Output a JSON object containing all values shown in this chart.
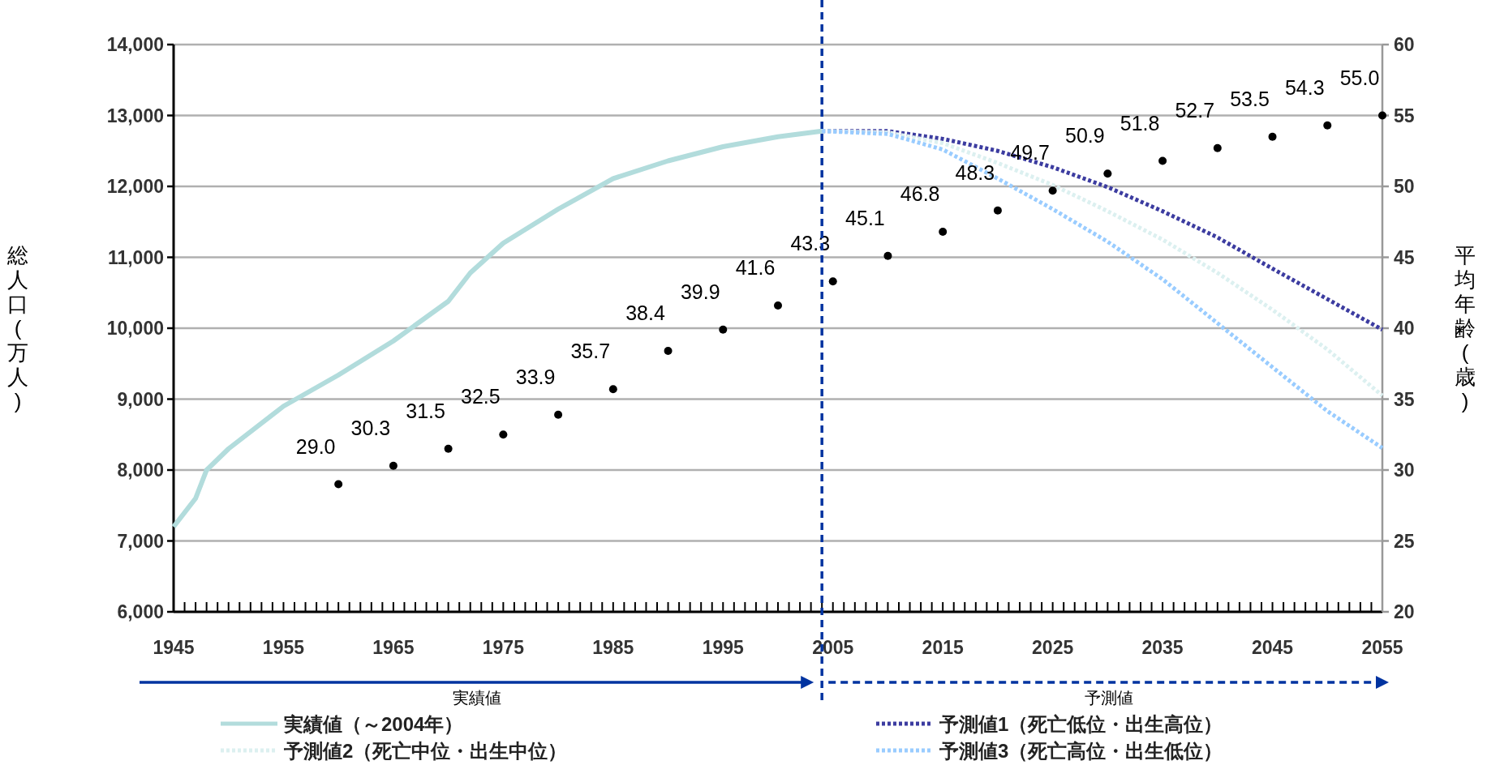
{
  "chart_data": {
    "type": "line",
    "xlabel": null,
    "ylabel": "総人口(万人)",
    "y2label": "平均年齢(歳)",
    "xlim": [
      1945,
      2055
    ],
    "xticks": [
      1945,
      {
        "value": 1946,
        "label": null
      },
      {
        "value": 1947,
        "label": null
      },
      {
        "value": 1948,
        "label": null
      },
      {
        "value": 1949,
        "label": null
      },
      {
        "value": 1950,
        "label": null
      },
      {
        "value": 1951,
        "label": null
      },
      {
        "value": 1952,
        "label": null
      },
      {
        "value": 1953,
        "label": null
      },
      {
        "value": 1954,
        "label": null
      },
      1955,
      {
        "value": 1956,
        "label": null
      },
      {
        "value": 1957,
        "label": null
      },
      {
        "value": 1958,
        "label": null
      },
      {
        "value": 1959,
        "label": null
      },
      {
        "value": 1960,
        "label": null
      },
      {
        "value": 1961,
        "label": null
      },
      {
        "value": 1962,
        "label": null
      },
      {
        "value": 1963,
        "label": null
      },
      {
        "value": 1964,
        "label": null
      },
      1965,
      {
        "value": 1966,
        "label": null
      },
      {
        "value": 1967,
        "label": null
      },
      {
        "value": 1968,
        "label": null
      },
      {
        "value": 1969,
        "label": null
      },
      {
        "value": 1970,
        "label": null
      },
      {
        "value": 1971,
        "label": null
      },
      {
        "value": 1972,
        "label": null
      },
      {
        "value": 1973,
        "label": null
      },
      {
        "value": 1974,
        "label": null
      },
      1975,
      {
        "value": 1976,
        "label": null
      },
      {
        "value": 1977,
        "label": null
      },
      {
        "value": 1978,
        "label": null
      },
      {
        "value": 1979,
        "label": null
      },
      {
        "value": 1980,
        "label": null
      },
      {
        "value": 1981,
        "label": null
      },
      {
        "value": 1982,
        "label": null
      },
      {
        "value": 1983,
        "label": null
      },
      {
        "value": 1984,
        "label": null
      },
      1985,
      {
        "value": 1986,
        "label": null
      },
      {
        "value": 1987,
        "label": null
      },
      {
        "value": 1988,
        "label": null
      },
      {
        "value": 1989,
        "label": null
      },
      {
        "value": 1990,
        "label": null
      },
      {
        "value": 1991,
        "label": null
      },
      {
        "value": 1992,
        "label": null
      },
      {
        "value": 1993,
        "label": null
      },
      {
        "value": 1994,
        "label": null
      },
      1995,
      {
        "value": 1996,
        "label": null
      },
      {
        "value": 1997,
        "label": null
      },
      {
        "value": 1998,
        "label": null
      },
      {
        "value": 1999,
        "label": null
      },
      {
        "value": 2000,
        "label": null
      },
      {
        "value": 2001,
        "label": null
      },
      {
        "value": 2002,
        "label": null
      },
      {
        "value": 2003,
        "label": null
      },
      {
        "value": 2004,
        "label": null
      },
      2005,
      {
        "value": 2006,
        "label": null
      },
      {
        "value": 2007,
        "label": null
      },
      {
        "value": 2008,
        "label": null
      },
      {
        "value": 2009,
        "label": null
      },
      {
        "value": 2010,
        "label": null
      },
      {
        "value": 2011,
        "label": null
      },
      {
        "value": 2012,
        "label": null
      },
      {
        "value": 2013,
        "label": null
      },
      {
        "value": 2014,
        "label": null
      },
      2015,
      {
        "value": 2016,
        "label": null
      },
      {
        "value": 2017,
        "label": null
      },
      {
        "value": 2018,
        "label": null
      },
      {
        "value": 2019,
        "label": null
      },
      {
        "value": 2020,
        "label": null
      },
      {
        "value": 2021,
        "label": null
      },
      {
        "value": 2022,
        "label": null
      },
      {
        "value": 2023,
        "label": null
      },
      {
        "value": 2024,
        "label": null
      },
      2025,
      {
        "value": 2026,
        "label": null
      },
      {
        "value": 2027,
        "label": null
      },
      {
        "value": 2028,
        "label": null
      },
      {
        "value": 2029,
        "label": null
      },
      {
        "value": 2030,
        "label": null
      },
      {
        "value": 2031,
        "label": null
      },
      {
        "value": 2032,
        "label": null
      },
      {
        "value": 2033,
        "label": null
      },
      {
        "value": 2034,
        "label": null
      },
      2035,
      {
        "value": 2036,
        "label": null
      },
      {
        "value": 2037,
        "label": null
      },
      {
        "value": 2038,
        "label": null
      },
      {
        "value": 2039,
        "label": null
      },
      {
        "value": 2040,
        "label": null
      },
      {
        "value": 2041,
        "label": null
      },
      {
        "value": 2042,
        "label": null
      },
      {
        "value": 2043,
        "label": null
      },
      {
        "value": 2044,
        "label": null
      },
      2045,
      {
        "value": 2046,
        "label": null
      },
      {
        "value": 2047,
        "label": null
      },
      {
        "value": 2048,
        "label": null
      },
      {
        "value": 2049,
        "label": null
      },
      {
        "value": 2050,
        "label": null
      },
      {
        "value": 2051,
        "label": null
      },
      {
        "value": 2052,
        "label": null
      },
      {
        "value": 2053,
        "label": null
      },
      {
        "value": 2054,
        "label": null
      },
      2055
    ],
    "ylim": [
      6000,
      14000
    ],
    "yticks": [
      {
        "value": 6000,
        "label": "6,000"
      },
      {
        "value": 7000,
        "label": "7,000"
      },
      {
        "value": 8000,
        "label": "8,000"
      },
      {
        "value": 9000,
        "label": "9,000"
      },
      {
        "value": 10000,
        "label": "10,000"
      },
      {
        "value": 11000,
        "label": "11,000"
      },
      {
        "value": 12000,
        "label": "12,000"
      },
      {
        "value": 13000,
        "label": "13,000"
      },
      {
        "value": 14000,
        "label": "14,000"
      }
    ],
    "y2lim": [
      20,
      60
    ],
    "y2ticks": [
      20,
      25,
      30,
      35,
      40,
      45,
      50,
      55,
      60
    ],
    "grid": "y",
    "legend": "bottom",
    "ref_lines": [
      {
        "axis": "x",
        "value": 2004,
        "label": null,
        "color": "#0033a0",
        "line_style": "dashed"
      }
    ],
    "annotations": [
      "実績値",
      "予測値"
    ],
    "series": [
      {
        "name": "実績値（～2004年）",
        "line_style": "solid",
        "color": "#b2dcdc",
        "x": [
          1945,
          1947,
          1948,
          1950,
          1955,
          1960,
          1965,
          1970,
          1972,
          1975,
          1980,
          1985,
          1990,
          1995,
          2000,
          2004
        ],
        "values": [
          7200,
          7600,
          8000,
          8300,
          8900,
          9340,
          9820,
          10380,
          10780,
          11200,
          11680,
          12110,
          12360,
          12560,
          12700,
          12780
        ]
      },
      {
        "name": "予測値1（死亡低位・出生高位）",
        "type": "line",
        "line_style": "dotted",
        "color": "#3c3ca0",
        "x": [
          2004,
          2010,
          2015,
          2020,
          2025,
          2030,
          2035,
          2040,
          2045,
          2050,
          2055
        ],
        "values": [
          12780,
          12780,
          12670,
          12500,
          12270,
          11990,
          11650,
          11280,
          10840,
          10410,
          9980
        ]
      },
      {
        "name": "予測値2（死亡中位・出生中位）",
        "type": "line",
        "line_style": "dotted",
        "color": "#dcf0f0",
        "x": [
          2004,
          2010,
          2015,
          2020,
          2025,
          2030,
          2035,
          2040,
          2045,
          2050,
          2055
        ],
        "values": [
          12780,
          12760,
          12610,
          12330,
          12020,
          11650,
          11250,
          10780,
          10260,
          9700,
          9050
        ]
      },
      {
        "name": "予測値3（死亡高位・出生低位）",
        "type": "line",
        "line_style": "dotted",
        "color": "#99ccff",
        "x": [
          2004,
          2010,
          2015,
          2020,
          2025,
          2030,
          2035,
          2040,
          2045,
          2050,
          2055
        ],
        "values": [
          12780,
          12740,
          12520,
          12110,
          11680,
          11220,
          10690,
          10070,
          9450,
          8830,
          8310
        ]
      },
      {
        "type": "scatter",
        "axis": "y2",
        "marker": "circle",
        "color": "#000000",
        "value_labels": [
          "29.0",
          "30.3",
          "31.5",
          "32.5",
          "33.9",
          "35.7",
          "38.4",
          "39.9",
          "41.6",
          "43.3",
          "45.1",
          "46.8",
          "48.3",
          "49.7",
          "50.9",
          "51.8",
          "52.7",
          "53.5",
          "54.3",
          "55.0"
        ],
        "x": [
          1960,
          1965,
          1970,
          1975,
          1980,
          1985,
          1990,
          1995,
          2000,
          2005,
          2010,
          2015,
          2020,
          2025,
          2030,
          2035,
          2040,
          2045,
          2050,
          2055
        ],
        "values": [
          29.0,
          30.3,
          31.5,
          32.5,
          33.9,
          35.7,
          38.4,
          39.9,
          41.6,
          43.3,
          45.1,
          46.8,
          48.3,
          49.7,
          50.9,
          51.8,
          52.7,
          53.5,
          54.3,
          55.0
        ]
      }
    ]
  }
}
